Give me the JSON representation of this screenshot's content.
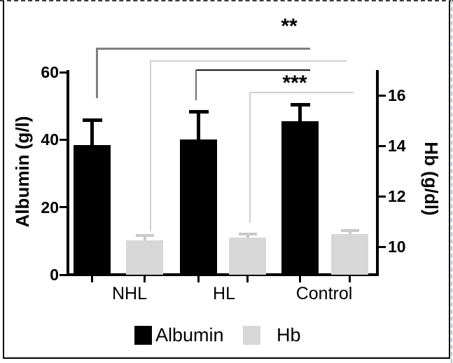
{
  "chart_data": {
    "type": "bar",
    "categories": [
      "NHL",
      "HL",
      "Control"
    ],
    "series": [
      {
        "name": "Albumin",
        "axis": "left",
        "unit": "g/l",
        "color": "#000000",
        "values": [
          38.5,
          40.0,
          45.5
        ],
        "errors_plus": [
          7.0,
          8.0,
          4.5
        ]
      },
      {
        "name": "Hb",
        "axis": "right",
        "unit": "g/dl",
        "color": "#d7d7d7",
        "values": [
          10.25,
          10.35,
          10.5
        ],
        "errors_plus": [
          0.17,
          0.12,
          0.1
        ]
      }
    ],
    "left_axis": {
      "label": "Albumin (g/l)",
      "ticks": [
        0,
        20,
        40,
        60
      ],
      "range": [
        0,
        60
      ]
    },
    "right_axis": {
      "label": "Hb (g/dl)",
      "ticks": [
        10,
        12,
        14,
        16
      ],
      "range": [
        8.9,
        17.1
      ]
    },
    "significance": [
      {
        "label": "**",
        "comparison": "NHL Albumin vs Control Albumin"
      },
      {
        "label": "",
        "comparison": "NHL Hb vs Control Hb"
      },
      {
        "label": "***",
        "comparison": "HL Albumin vs Control Albumin"
      },
      {
        "label": "",
        "comparison": "HL Hb vs Control Hb"
      }
    ],
    "legend": [
      "Albumin",
      "Hb"
    ],
    "legend_position": "bottom",
    "grid": false
  }
}
